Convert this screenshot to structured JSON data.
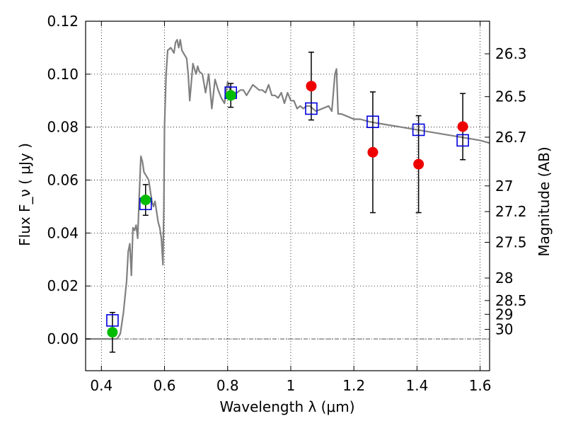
{
  "chart_data": {
    "type": "scatter",
    "xlabel": "Wavelength  λ (μm)",
    "ylabel": "Flux  F_ν  ( μJy )",
    "y2label": "Magnitude (AB)",
    "xlim": [
      0.35,
      1.63
    ],
    "ylim": [
      -0.012,
      0.12
    ],
    "grid": true,
    "x_ticks": [
      0.4,
      0.6,
      0.8,
      1.0,
      1.2,
      1.4,
      1.6
    ],
    "x_tick_labels": [
      "0.4",
      "0.6",
      "0.8",
      "1",
      "1.2",
      "1.4",
      "1.6"
    ],
    "y_ticks": [
      0.0,
      0.02,
      0.04,
      0.06,
      0.08,
      0.1,
      0.12
    ],
    "y_tick_labels": [
      "0.00",
      "0.02",
      "0.04",
      "0.06",
      "0.08",
      "0.10",
      "0.12"
    ],
    "y2_ticks": [
      {
        "label": "26.3",
        "flux": 0.1077
      },
      {
        "label": "26.5",
        "flux": 0.0915
      },
      {
        "label": "26.7",
        "flux": 0.0762
      },
      {
        "label": "27",
        "flux": 0.0578
      },
      {
        "label": "27.2",
        "flux": 0.0481
      },
      {
        "label": "27.5",
        "flux": 0.0365
      },
      {
        "label": "28",
        "flux": 0.023
      },
      {
        "label": "28.5",
        "flux": 0.0145
      },
      {
        "label": "29",
        "flux": 0.0093
      },
      {
        "label": "30",
        "flux": 0.0036
      }
    ],
    "colors": {
      "model": "#808080",
      "green_points": "#00bb00",
      "red_points": "#ee0000",
      "model_boxes": "#0000dd",
      "error_bars": "#000000",
      "zero_line": "#555555"
    },
    "series": [
      {
        "kind": "model_spectrum",
        "x": [
          0.35,
          0.44,
          0.45,
          0.46,
          0.47,
          0.48,
          0.485,
          0.49,
          0.495,
          0.5,
          0.505,
          0.51,
          0.515,
          0.52,
          0.525,
          0.53,
          0.535,
          0.54,
          0.545,
          0.55,
          0.555,
          0.56,
          0.565,
          0.57,
          0.575,
          0.58,
          0.585,
          0.59,
          0.595,
          0.598,
          0.6,
          0.605,
          0.61,
          0.62,
          0.625,
          0.63,
          0.635,
          0.64,
          0.645,
          0.65,
          0.655,
          0.66,
          0.665,
          0.67,
          0.675,
          0.68,
          0.69,
          0.695,
          0.7,
          0.705,
          0.71,
          0.72,
          0.73,
          0.74,
          0.75,
          0.76,
          0.77,
          0.78,
          0.79,
          0.8,
          0.81,
          0.82,
          0.83,
          0.84,
          0.85,
          0.86,
          0.87,
          0.88,
          0.89,
          0.9,
          0.91,
          0.92,
          0.93,
          0.94,
          0.95,
          0.96,
          0.97,
          0.98,
          0.99,
          1.0,
          1.01,
          1.02,
          1.03,
          1.04,
          1.05,
          1.06,
          1.08,
          1.1,
          1.12,
          1.13,
          1.14,
          1.145,
          1.15,
          1.16,
          1.18,
          1.2,
          1.22,
          1.25,
          1.3,
          1.35,
          1.4,
          1.45,
          1.5,
          1.55,
          1.6,
          1.63
        ],
        "y": [
          0.0,
          0.0,
          0.0,
          0.002,
          0.01,
          0.022,
          0.033,
          0.036,
          0.024,
          0.042,
          0.041,
          0.043,
          0.038,
          0.054,
          0.069,
          0.067,
          0.063,
          0.062,
          0.061,
          0.06,
          0.056,
          0.052,
          0.05,
          0.052,
          0.048,
          0.044,
          0.042,
          0.038,
          0.028,
          0.05,
          0.08,
          0.1,
          0.109,
          0.11,
          0.109,
          0.108,
          0.112,
          0.113,
          0.11,
          0.113,
          0.109,
          0.108,
          0.107,
          0.106,
          0.1,
          0.09,
          0.104,
          0.102,
          0.1,
          0.103,
          0.101,
          0.1,
          0.093,
          0.1,
          0.087,
          0.098,
          0.094,
          0.091,
          0.089,
          0.097,
          0.093,
          0.093,
          0.093,
          0.094,
          0.094,
          0.092,
          0.094,
          0.096,
          0.095,
          0.094,
          0.094,
          0.093,
          0.096,
          0.092,
          0.092,
          0.091,
          0.093,
          0.089,
          0.093,
          0.09,
          0.09,
          0.087,
          0.088,
          0.087,
          0.088,
          0.088,
          0.086,
          0.087,
          0.088,
          0.086,
          0.1,
          0.102,
          0.085,
          0.085,
          0.084,
          0.083,
          0.083,
          0.082,
          0.081,
          0.08,
          0.079,
          0.078,
          0.077,
          0.076,
          0.075,
          0.074
        ]
      },
      {
        "kind": "model_photometry_boxes",
        "x": [
          0.435,
          0.54,
          0.81,
          1.065,
          1.26,
          1.405,
          1.545
        ],
        "y": [
          0.007,
          0.051,
          0.093,
          0.087,
          0.082,
          0.079,
          0.075
        ]
      },
      {
        "kind": "green_points",
        "x": [
          0.435,
          0.54,
          0.81
        ],
        "y": [
          0.0025,
          0.0525,
          0.092
        ]
      },
      {
        "kind": "red_points",
        "x": [
          1.065,
          1.26,
          1.405,
          1.545
        ],
        "y": [
          0.0955,
          0.0705,
          0.066,
          0.0802
        ]
      },
      {
        "kind": "error_bars",
        "x": [
          0.435,
          0.54,
          0.81,
          1.065,
          1.26,
          1.405,
          1.545
        ],
        "y": [
          0.0025,
          0.0525,
          0.092,
          0.0955,
          0.0705,
          0.066,
          0.0802
        ],
        "err": [
          0.0075,
          0.0058,
          0.0045,
          0.0128,
          0.0228,
          0.0183,
          0.0125
        ]
      }
    ]
  }
}
